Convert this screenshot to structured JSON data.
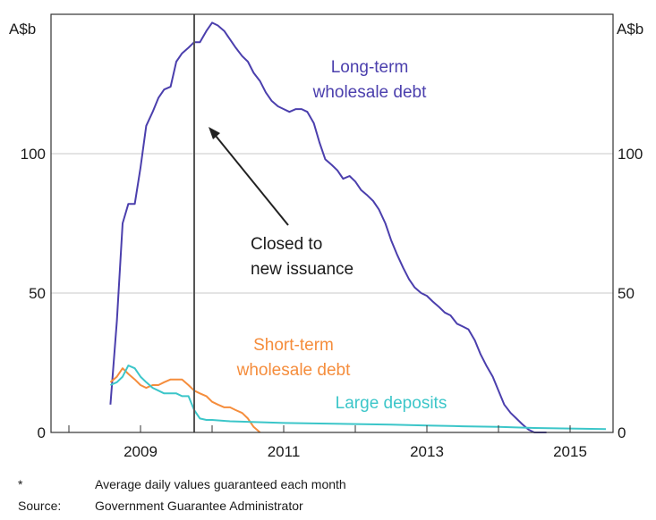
{
  "chart_data": {
    "type": "line",
    "unit_label_left": "A$b",
    "unit_label_right": "A$b",
    "xlim": [
      2007.75,
      2015.6
    ],
    "ylim": [
      0,
      150
    ],
    "yticks": [
      0,
      50,
      100
    ],
    "xticks": [
      2009,
      2011,
      2013,
      2015
    ],
    "grid": true,
    "colors": {
      "long_term": "#4b3fad",
      "short_term": "#f58d3c",
      "deposits": "#3cc6c9",
      "grid": "#c8c8c8",
      "axis": "#333333",
      "marker": "#555555"
    },
    "vline": {
      "x": 2009.75
    },
    "annotations": [
      {
        "id": "closed",
        "lines": [
          "Closed to",
          "new issuance"
        ],
        "color": "#1a1a1a"
      }
    ],
    "series": [
      {
        "name": "Long-term wholesale debt",
        "label_lines": [
          "Long-term",
          "wholesale debt"
        ],
        "color": "#4b3fad",
        "x": [
          2008.58,
          2008.67,
          2008.75,
          2008.83,
          2008.92,
          2009.0,
          2009.08,
          2009.17,
          2009.25,
          2009.33,
          2009.42,
          2009.5,
          2009.58,
          2009.67,
          2009.75,
          2009.83,
          2009.92,
          2010.0,
          2010.08,
          2010.17,
          2010.25,
          2010.33,
          2010.42,
          2010.5,
          2010.58,
          2010.67,
          2010.75,
          2010.83,
          2010.92,
          2011.0,
          2011.08,
          2011.17,
          2011.25,
          2011.33,
          2011.42,
          2011.5,
          2011.58,
          2011.67,
          2011.75,
          2011.83,
          2011.92,
          2012.0,
          2012.08,
          2012.17,
          2012.25,
          2012.33,
          2012.42,
          2012.5,
          2012.58,
          2012.67,
          2012.75,
          2012.83,
          2012.92,
          2013.0,
          2013.08,
          2013.17,
          2013.25,
          2013.33,
          2013.42,
          2013.5,
          2013.58,
          2013.67,
          2013.75,
          2013.83,
          2013.92,
          2014.0,
          2014.08,
          2014.17,
          2014.25,
          2014.33,
          2014.42,
          2014.5,
          2014.58,
          2014.67
        ],
        "values": [
          10,
          40,
          75,
          82,
          82,
          95,
          110,
          115,
          120,
          123,
          124,
          133,
          136,
          138,
          140,
          140,
          144,
          147,
          146,
          144,
          141,
          138,
          135,
          133,
          129,
          126,
          122,
          119,
          117,
          116,
          115,
          116,
          116,
          115,
          111,
          104,
          98,
          96,
          94,
          91,
          92,
          90,
          87,
          85,
          83,
          80,
          75,
          69,
          64,
          59,
          55,
          52,
          50,
          49,
          47,
          45,
          43,
          42,
          39,
          38,
          37,
          33,
          28,
          24,
          20,
          15,
          10,
          7,
          5,
          3,
          1,
          0,
          0,
          0
        ]
      },
      {
        "name": "Short-term wholesale debt",
        "label_lines": [
          "Short-term",
          "wholesale debt"
        ],
        "color": "#f58d3c",
        "x": [
          2008.58,
          2008.67,
          2008.75,
          2008.83,
          2008.92,
          2009.0,
          2009.08,
          2009.17,
          2009.25,
          2009.33,
          2009.42,
          2009.5,
          2009.58,
          2009.67,
          2009.75,
          2009.83,
          2009.92,
          2010.0,
          2010.08,
          2010.17,
          2010.25,
          2010.33,
          2010.42,
          2010.5,
          2010.58,
          2010.67
        ],
        "values": [
          18,
          20,
          23,
          21,
          19,
          17,
          16,
          17,
          17,
          18,
          19,
          19,
          19,
          17,
          15,
          14,
          13,
          11,
          10,
          9,
          9,
          8,
          7,
          5,
          2,
          0
        ]
      },
      {
        "name": "Large deposits",
        "label_lines": [
          "Large deposits"
        ],
        "color": "#3cc6c9",
        "x": [
          2008.58,
          2008.67,
          2008.75,
          2008.83,
          2008.92,
          2009.0,
          2009.08,
          2009.17,
          2009.25,
          2009.33,
          2009.42,
          2009.5,
          2009.58,
          2009.67,
          2009.75,
          2009.83,
          2009.92,
          2010.0,
          2010.25,
          2010.5,
          2010.75,
          2011.0,
          2011.5,
          2012.0,
          2012.5,
          2013.0,
          2013.5,
          2014.0,
          2014.5,
          2015.0,
          2015.5
        ],
        "values": [
          17,
          18,
          20,
          24,
          23,
          20,
          18,
          16,
          15,
          14,
          14,
          14,
          13,
          13,
          8,
          5,
          4.5,
          4.5,
          4,
          3.8,
          3.6,
          3.4,
          3.2,
          3,
          2.8,
          2.5,
          2.2,
          2,
          1.6,
          1.4,
          1.2
        ]
      }
    ]
  },
  "footnotes": {
    "note_mark": "*",
    "note_text": "Average daily values guaranteed each month",
    "source_label": "Source:",
    "source_text": "Government Guarantee Administrator"
  }
}
